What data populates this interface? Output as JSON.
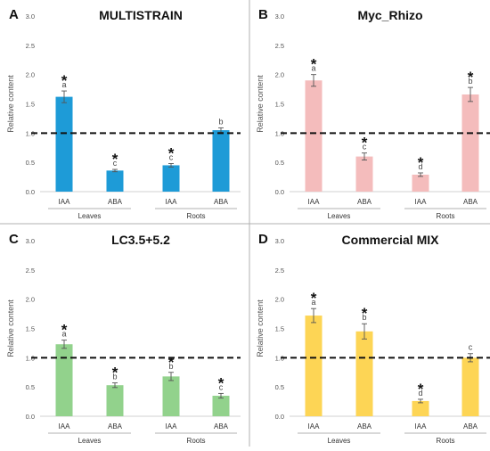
{
  "chart_data": [
    {
      "type": "bar",
      "panel_letter": "A",
      "title": "MULTISTRAIN",
      "ylabel": "Relative content",
      "ylim": [
        0,
        3.0
      ],
      "yticks": [
        "0.0",
        "0.5",
        "1.0",
        "1.5",
        "2.0",
        "2.5",
        "3.0"
      ],
      "categories": [
        "IAA",
        "ABA",
        "IAA",
        "ABA"
      ],
      "groups": [
        "Leaves",
        "Roots"
      ],
      "values": [
        1.62,
        0.36,
        0.45,
        1.05
      ],
      "errors": [
        0.1,
        0.02,
        0.03,
        0.04
      ],
      "letters": [
        "a",
        "c",
        "c",
        "b"
      ],
      "stars": [
        true,
        true,
        true,
        false
      ],
      "reference_line": 1.0,
      "color": "#1E9BD7"
    },
    {
      "type": "bar",
      "panel_letter": "B",
      "title": "Myc_Rhizo",
      "ylabel": "Relative content",
      "ylim": [
        0,
        3.0
      ],
      "yticks": [
        "0.0",
        "0.5",
        "1.0",
        "1.5",
        "2.0",
        "2.5",
        "3.0"
      ],
      "categories": [
        "IAA",
        "ABA",
        "IAA",
        "ABA"
      ],
      "groups": [
        "Leaves",
        "Roots"
      ],
      "values": [
        1.9,
        0.6,
        0.29,
        1.66
      ],
      "errors": [
        0.1,
        0.06,
        0.03,
        0.12
      ],
      "letters": [
        "a",
        "c",
        "d",
        "b"
      ],
      "stars": [
        true,
        true,
        true,
        true
      ],
      "reference_line": 1.0,
      "color": "#F4BCBC"
    },
    {
      "type": "bar",
      "panel_letter": "C",
      "title": "LC3.5+5.2",
      "ylabel": "Relative content",
      "ylim": [
        0,
        3.0
      ],
      "yticks": [
        "0.0",
        "0.5",
        "1.0",
        "1.5",
        "2.0",
        "2.5",
        "3.0"
      ],
      "categories": [
        "IAA",
        "ABA",
        "IAA",
        "ABA"
      ],
      "groups": [
        "Leaves",
        "Roots"
      ],
      "values": [
        1.23,
        0.53,
        0.68,
        0.35
      ],
      "errors": [
        0.07,
        0.04,
        0.07,
        0.04
      ],
      "letters": [
        "a",
        "b",
        "b",
        "c"
      ],
      "stars": [
        true,
        true,
        true,
        true
      ],
      "reference_line": 1.0,
      "color": "#92D28C"
    },
    {
      "type": "bar",
      "panel_letter": "D",
      "title": "Commercial MIX",
      "ylabel": "Relative content",
      "ylim": [
        0,
        3.0
      ],
      "yticks": [
        "0.0",
        "0.5",
        "1.0",
        "1.5",
        "2.0",
        "2.5",
        "3.0"
      ],
      "categories": [
        "IAA",
        "ABA",
        "IAA",
        "ABA"
      ],
      "groups": [
        "Leaves",
        "Roots"
      ],
      "values": [
        1.72,
        1.45,
        0.26,
        1.0
      ],
      "errors": [
        0.12,
        0.13,
        0.03,
        0.07
      ],
      "letters": [
        "a",
        "b",
        "d",
        "c"
      ],
      "stars": [
        true,
        true,
        true,
        false
      ],
      "reference_line": 1.0,
      "color": "#FDD555"
    }
  ]
}
